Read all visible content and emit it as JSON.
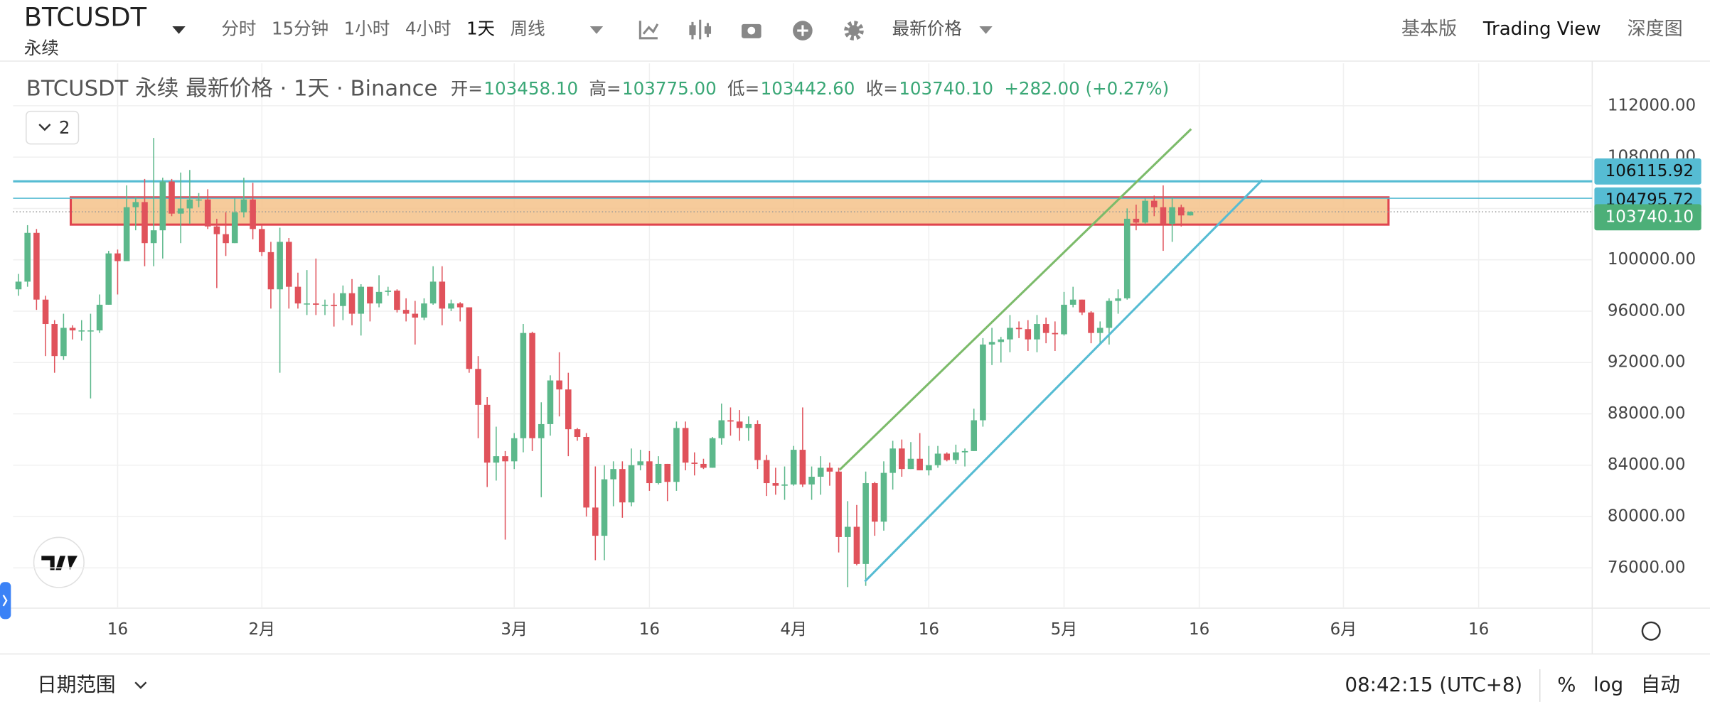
{
  "toolbar": {
    "symbol": "BTCUSDT",
    "contract": "永续",
    "intervals": [
      "分时",
      "15分钟",
      "1小时",
      "4小时",
      "1天",
      "周线"
    ],
    "price_type": "最新价格",
    "views": [
      "基本版",
      "Trading View",
      "深度图"
    ]
  },
  "chart_data": {
    "type": "candlestick",
    "legend": {
      "title": "BTCUSDT 永续 最新价格 · 1天 · Binance",
      "items": [
        {
          "label": "开=",
          "value": "103458.10"
        },
        {
          "label": "高=",
          "value": "103775.00"
        },
        {
          "label": "低=",
          "value": "103442.60"
        },
        {
          "label": "收=",
          "value": "103740.10"
        }
      ],
      "change": "+282.00 (+0.27%)",
      "collapse": "2"
    },
    "up_color": "#5cb88b",
    "down_color": "#e0525b",
    "x": [
      5,
      6,
      7,
      8,
      9,
      10,
      11,
      12,
      13,
      14,
      15,
      16,
      17,
      18,
      19,
      20,
      21,
      22,
      23,
      24,
      25,
      26,
      27,
      28,
      29,
      30,
      31,
      32,
      33,
      34,
      35,
      36,
      37,
      38,
      39,
      40,
      41,
      42,
      43,
      44,
      45,
      46,
      47,
      48,
      49,
      50,
      51,
      52,
      53,
      54,
      55,
      56,
      57,
      58,
      59,
      60,
      61,
      62,
      63,
      64,
      65,
      66,
      67,
      68,
      69,
      70,
      71,
      72,
      73,
      74,
      75,
      76,
      77,
      78,
      79,
      80,
      81,
      82,
      83,
      84,
      85,
      86,
      87,
      88,
      89,
      90,
      91,
      92,
      93,
      94,
      95,
      96,
      97,
      98,
      99,
      100,
      101,
      102,
      103,
      104,
      105,
      106,
      107,
      108,
      109,
      110,
      111,
      112,
      113,
      114,
      115,
      116,
      117,
      118,
      119,
      120,
      121,
      122,
      123,
      124,
      125,
      126,
      127,
      128,
      129,
      130,
      131,
      132,
      133,
      134,
      135
    ],
    "open": [
      97700,
      98300,
      102100,
      96900,
      95000,
      92500,
      94700,
      94500,
      94500,
      94500,
      96500,
      100500,
      99900,
      104100,
      104500,
      101300,
      102300,
      106100,
      103600,
      104000,
      104700,
      104700,
      102600,
      102000,
      101300,
      103700,
      104700,
      102400,
      100600,
      97700,
      101400,
      97900,
      96600,
      96600,
      96500,
      96500,
      96400,
      97400,
      95800,
      97900,
      96600,
      97500,
      97600,
      96100,
      95800,
      95500,
      96600,
      98300,
      96200,
      96600,
      96300,
      91500,
      88700,
      84200,
      84700,
      84300,
      86100,
      94300,
      86100,
      87200,
      90600,
      89900,
      86800,
      86200,
      80700,
      78500,
      82900,
      83700,
      81100,
      84000,
      84300,
      82600,
      84100,
      82700,
      86900,
      84200,
      84100,
      83800,
      86100,
      87500,
      87400,
      86900,
      87200,
      84400,
      82600,
      82400,
      82500,
      85200,
      82500,
      83100,
      83800,
      83500,
      78400,
      79200,
      76300,
      82600,
      79600,
      83400,
      85300,
      83700,
      84500,
      83600,
      84000,
      84900,
      84400,
      85000,
      85100,
      87500,
      93400,
      93600,
      93800,
      94700,
      94600,
      93800,
      95000,
      94300,
      94200,
      96500,
      96900,
      95900,
      94300,
      94700,
      96800,
      97000,
      103200,
      102900,
      104600,
      104100,
      102800,
      104100,
      103458.1
    ],
    "high": [
      98900,
      102700,
      102400,
      97200,
      95300,
      95800,
      94900,
      95300,
      95800,
      97300,
      100700,
      100800,
      105800,
      104900,
      106300,
      109500,
      106400,
      106300,
      106800,
      107000,
      105200,
      105500,
      103200,
      103700,
      104800,
      106400,
      106000,
      102700,
      101400,
      102500,
      101700,
      99000,
      99200,
      100100,
      96900,
      97400,
      98000,
      98500,
      98100,
      97900,
      98800,
      97900,
      97700,
      97000,
      96800,
      97000,
      99500,
      99500,
      96900,
      96700,
      96300,
      92500,
      89300,
      87000,
      85100,
      86500,
      95000,
      94400,
      88900,
      91000,
      92800,
      91200,
      86900,
      86500,
      83900,
      84000,
      84300,
      84300,
      85300,
      85200,
      85100,
      84700,
      84100,
      87400,
      87400,
      85000,
      84500,
      86200,
      88800,
      88500,
      88300,
      87800,
      87500,
      84800,
      83800,
      83900,
      85500,
      88500,
      83900,
      84700,
      84200,
      83800,
      81200,
      80900,
      83500,
      82700,
      84300,
      85900,
      86000,
      85800,
      86500,
      85500,
      85500,
      85000,
      85600,
      85300,
      88400,
      93900,
      94700,
      94000,
      95700,
      95200,
      95300,
      95700,
      95500,
      95200,
      97500,
      97900,
      96900,
      96000,
      95200,
      97000,
      97700,
      104000,
      104300,
      104800,
      105000,
      105800,
      104900,
      104300,
      103775
    ],
    "low": [
      97200,
      97900,
      96100,
      92500,
      91200,
      92200,
      93800,
      93700,
      89200,
      94300,
      96500,
      97300,
      99900,
      102300,
      99500,
      99500,
      100100,
      103400,
      101300,
      102800,
      104100,
      102400,
      97800,
      100300,
      101300,
      103300,
      101600,
      100300,
      96200,
      91200,
      96200,
      96200,
      95700,
      95700,
      95700,
      94800,
      95300,
      94900,
      94100,
      95200,
      96300,
      97200,
      95900,
      95200,
      93400,
      95300,
      96500,
      94900,
      96000,
      95200,
      91200,
      86100,
      82300,
      82800,
      78200,
      83700,
      85000,
      85100,
      81500,
      86300,
      87800,
      84700,
      85900,
      80000,
      76600,
      76600,
      80800,
      79900,
      80800,
      83600,
      82000,
      82500,
      81200,
      82000,
      83600,
      83200,
      83700,
      83800,
      85600,
      86300,
      85900,
      85900,
      83700,
      81600,
      81700,
      81300,
      82400,
      82300,
      81300,
      81700,
      82400,
      77200,
      74500,
      76200,
      74600,
      78500,
      78900,
      82100,
      83100,
      83700,
      83600,
      83200,
      83800,
      84300,
      84100,
      83900,
      85100,
      87000,
      91800,
      92000,
      92800,
      93900,
      92900,
      92800,
      93500,
      92900,
      94100,
      96300,
      95700,
      93500,
      93500,
      93400,
      95800,
      96900,
      102300,
      102800,
      103400,
      100700,
      101400,
      102600,
      103442.6
    ],
    "close": [
      98300,
      102100,
      96900,
      95000,
      92500,
      94700,
      94500,
      94500,
      94500,
      96500,
      100500,
      99900,
      104100,
      104500,
      101300,
      102300,
      106100,
      103600,
      104000,
      104700,
      104700,
      102600,
      102000,
      101300,
      103700,
      104700,
      102400,
      100600,
      97700,
      101400,
      97900,
      96600,
      96600,
      96500,
      96500,
      96400,
      97400,
      95800,
      97900,
      96600,
      97500,
      97600,
      96100,
      95800,
      95500,
      96600,
      98300,
      96200,
      96600,
      96300,
      91500,
      88700,
      84200,
      84700,
      84300,
      86100,
      94300,
      86100,
      87200,
      90600,
      89900,
      86800,
      86200,
      80700,
      78500,
      82900,
      83700,
      81100,
      84000,
      84300,
      82600,
      84100,
      82700,
      86900,
      84200,
      84100,
      83800,
      86100,
      87500,
      87400,
      86900,
      87200,
      84400,
      82600,
      82400,
      82500,
      85200,
      82500,
      83100,
      83800,
      83500,
      78400,
      79200,
      76300,
      82600,
      79600,
      83400,
      85300,
      83700,
      84500,
      83600,
      84000,
      84900,
      84400,
      85000,
      85100,
      87500,
      93400,
      93600,
      93800,
      94700,
      94600,
      93800,
      95000,
      94300,
      94200,
      96500,
      96900,
      95900,
      94300,
      94700,
      96800,
      97000,
      103200,
      102900,
      104600,
      104100,
      102800,
      104100,
      103458.1,
      103740.1
    ],
    "xlim": [
      4.4,
      179.6
    ],
    "ylim": [
      72860,
      115310
    ],
    "xticks": [
      {
        "value": 16,
        "label": "16"
      },
      {
        "value": 32,
        "label": "2月"
      },
      {
        "value": 60,
        "label": "3月"
      },
      {
        "value": 75,
        "label": "16"
      },
      {
        "value": 91,
        "label": "4月"
      },
      {
        "value": 106,
        "label": "16"
      },
      {
        "value": 121,
        "label": "5月"
      },
      {
        "value": 136,
        "label": "16"
      },
      {
        "value": 152,
        "label": "6月"
      },
      {
        "value": 167,
        "label": "16"
      }
    ],
    "yticks": [
      {
        "value": 76000,
        "label": "76000.00"
      },
      {
        "value": 80000,
        "label": "80000.00"
      },
      {
        "value": 84000,
        "label": "84000.00"
      },
      {
        "value": 88000,
        "label": "88000.00"
      },
      {
        "value": 92000,
        "label": "92000.00"
      },
      {
        "value": 96000,
        "label": "96000.00"
      },
      {
        "value": 100000,
        "label": "100000.00"
      },
      {
        "value": 104000,
        "label": "104000.00"
      },
      {
        "value": 108000,
        "label": "108000.00"
      },
      {
        "value": 112000,
        "label": "112000.00"
      }
    ],
    "grid": true,
    "price_lines": [
      {
        "value": 106115.92,
        "label": "106115.92",
        "color": "#56bcd3"
      },
      {
        "value": 104795.72,
        "label": "104795.72",
        "color": "#56bcd3"
      },
      {
        "value": 103740.1,
        "label": "103740.10",
        "color": "#4caf78"
      }
    ],
    "drawings": {
      "zone": {
        "x": [
          10.8,
          157
        ],
        "y": [
          102743,
          104866
        ],
        "fill": "#f5c28a",
        "stroke": "#e0444e"
      },
      "lines": [
        {
          "x": [
            96.1,
            135.1
          ],
          "y": [
            83634,
            110190
          ],
          "color": "#7cbb6a"
        },
        {
          "x": [
            98.9,
            143
          ],
          "y": [
            74938,
            106226
          ],
          "color": "#56bcd3"
        }
      ]
    }
  },
  "footer": {
    "date_range": "日期范围",
    "time": "08:42:15 (UTC+8)",
    "options": [
      "%",
      "log",
      "自动"
    ]
  }
}
